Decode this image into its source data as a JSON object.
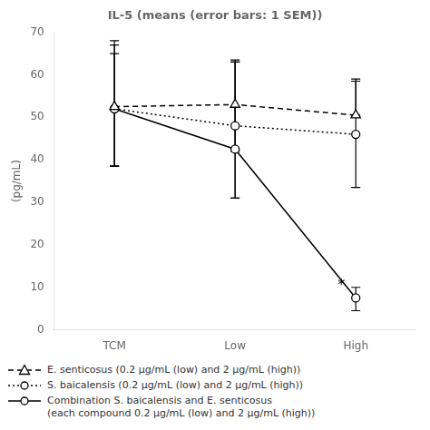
{
  "chart_data": {
    "type": "line",
    "title": "IL-5 (means (error bars: 1 SEM))",
    "ylabel": "(pg/mL)",
    "categories": [
      "TCM",
      "Low",
      "High"
    ],
    "ylim": [
      0,
      70
    ],
    "yticks": [
      0,
      10,
      20,
      30,
      40,
      50,
      60,
      70
    ],
    "grid": false,
    "series": [
      {
        "name": "E. senticosus (0.2 μg/mL (low) and 2 μg/mL (high))",
        "color": "#000000",
        "marker": "triangle",
        "line_style": "dashed",
        "values": [
          52.5,
          53.0,
          50.5
        ],
        "error_low": [
          14.0,
          11.0,
          0.0
        ],
        "error_high": [
          14.5,
          10.0,
          8.0
        ]
      },
      {
        "name": "S. baicalensis (0.2 μg/mL (low) and 2 μg/mL (high))",
        "color": "#000000",
        "marker": "circle",
        "line_style": "dotted",
        "values": [
          52.0,
          48.0,
          46.0
        ],
        "error_low": [
          13.5,
          17.0,
          12.5
        ],
        "error_high": [
          13.0,
          15.0,
          13.0
        ]
      },
      {
        "name": "Combination S. baicalensis and E. senticosus\n(each compound 0.2 μg/mL (low) and 2 μg/mL (high))",
        "color": "#000000",
        "marker": "circle",
        "line_style": "solid",
        "values": [
          52.0,
          42.5,
          7.5
        ],
        "error_low": [
          13.5,
          11.5,
          3.0
        ],
        "error_high": [
          16.0,
          21.0,
          2.5
        ]
      }
    ],
    "annotations": [
      {
        "text": "*",
        "x": 1.88,
        "y": 10.5
      }
    ]
  }
}
